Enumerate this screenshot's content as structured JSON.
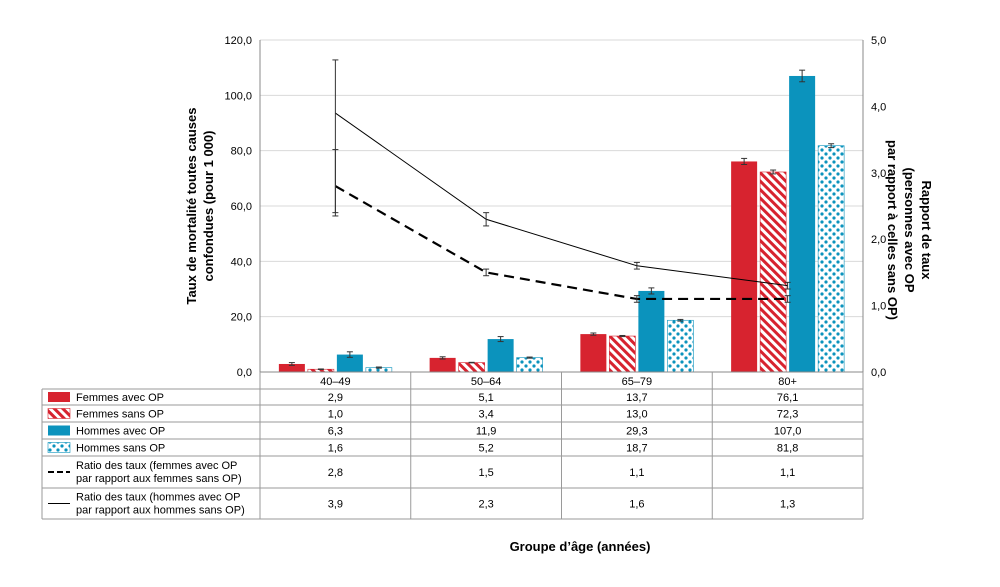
{
  "chart_data": {
    "type": "bar",
    "categories": [
      "40–49",
      "50–64",
      "65–79",
      "80+"
    ],
    "series": [
      {
        "name": "Femmes avec OP",
        "values": [
          2.9,
          5.1,
          13.7,
          76.1
        ],
        "labels": [
          "2,9",
          "5,1",
          "13,7",
          "76,1"
        ],
        "err_low": [
          2.4,
          4.7,
          13.3,
          75.0
        ],
        "err_high": [
          3.4,
          5.5,
          14.1,
          77.2
        ],
        "style": "solid",
        "color": "#d7232f"
      },
      {
        "name": "Femmes sans OP",
        "values": [
          1.0,
          3.4,
          13.0,
          72.3
        ],
        "labels": [
          "1,0",
          "3,4",
          "13,0",
          "72,3"
        ],
        "err_low": [
          0.9,
          3.3,
          12.8,
          71.6
        ],
        "err_high": [
          1.1,
          3.5,
          13.2,
          73.0
        ],
        "style": "hatch",
        "color": "#d7232f"
      },
      {
        "name": "Hommes avec OP",
        "values": [
          6.3,
          11.9,
          29.3,
          107.0
        ],
        "labels": [
          "6,3",
          "11,9",
          "29,3",
          "107,0"
        ],
        "err_low": [
          5.3,
          11.0,
          28.2,
          104.9
        ],
        "err_high": [
          7.3,
          12.8,
          30.4,
          109.1
        ],
        "style": "solid",
        "color": "#0b93bd"
      },
      {
        "name": "Hommes sans OP",
        "values": [
          1.6,
          5.2,
          18.7,
          81.8
        ],
        "labels": [
          "1,6",
          "5,2",
          "18,7",
          "81,8"
        ],
        "err_low": [
          1.4,
          5.0,
          18.4,
          81.1
        ],
        "err_high": [
          1.8,
          5.4,
          19.0,
          82.5
        ],
        "style": "dots",
        "color": "#0b93bd"
      }
    ],
    "ratio_series": [
      {
        "name_lines": [
          "Ratio des taux (femmes avec OP",
          "par rapport aux femmes sans OP)"
        ],
        "values": [
          2.8,
          1.5,
          1.1,
          1.1
        ],
        "labels": [
          "2,8",
          "1,5",
          "1,1",
          "1,1"
        ],
        "err_low": [
          2.35,
          1.45,
          1.05,
          1.05
        ],
        "err_high": [
          3.35,
          1.55,
          1.15,
          1.15
        ],
        "style": "dashed"
      },
      {
        "name_lines": [
          "Ratio des taux (hommes avec OP",
          "par rapport aux hommes sans OP)"
        ],
        "values": [
          3.9,
          2.3,
          1.6,
          1.3
        ],
        "labels": [
          "3,9",
          "2,3",
          "1,6",
          "1,3"
        ],
        "err_low": [
          2.4,
          2.2,
          1.55,
          1.25
        ],
        "err_high": [
          4.7,
          2.4,
          1.65,
          1.35
        ],
        "style": "solid"
      }
    ],
    "y_left": {
      "label_lines": [
        "Taux de mortalité toutes causes",
        "confondues (pour 1 000)"
      ],
      "min": 0,
      "max": 120,
      "ticks": [
        0,
        20,
        40,
        60,
        80,
        100,
        120
      ],
      "tick_labels": [
        "0,0",
        "20,0",
        "40,0",
        "60,0",
        "80,0",
        "100,0",
        "120,0"
      ]
    },
    "y_right": {
      "label_lines": [
        "Rapport de taux",
        "(personnes avec OP",
        "par rapport à celles sans OP)"
      ],
      "min": 0,
      "max": 5,
      "ticks": [
        0,
        1,
        2,
        3,
        4,
        5
      ],
      "tick_labels": [
        "0,0",
        "1,0",
        "2,0",
        "3,0",
        "4,0",
        "5,0"
      ]
    },
    "xlabel": "Groupe d’âge (années)",
    "gridlines": true,
    "legend": "data-table-below"
  }
}
